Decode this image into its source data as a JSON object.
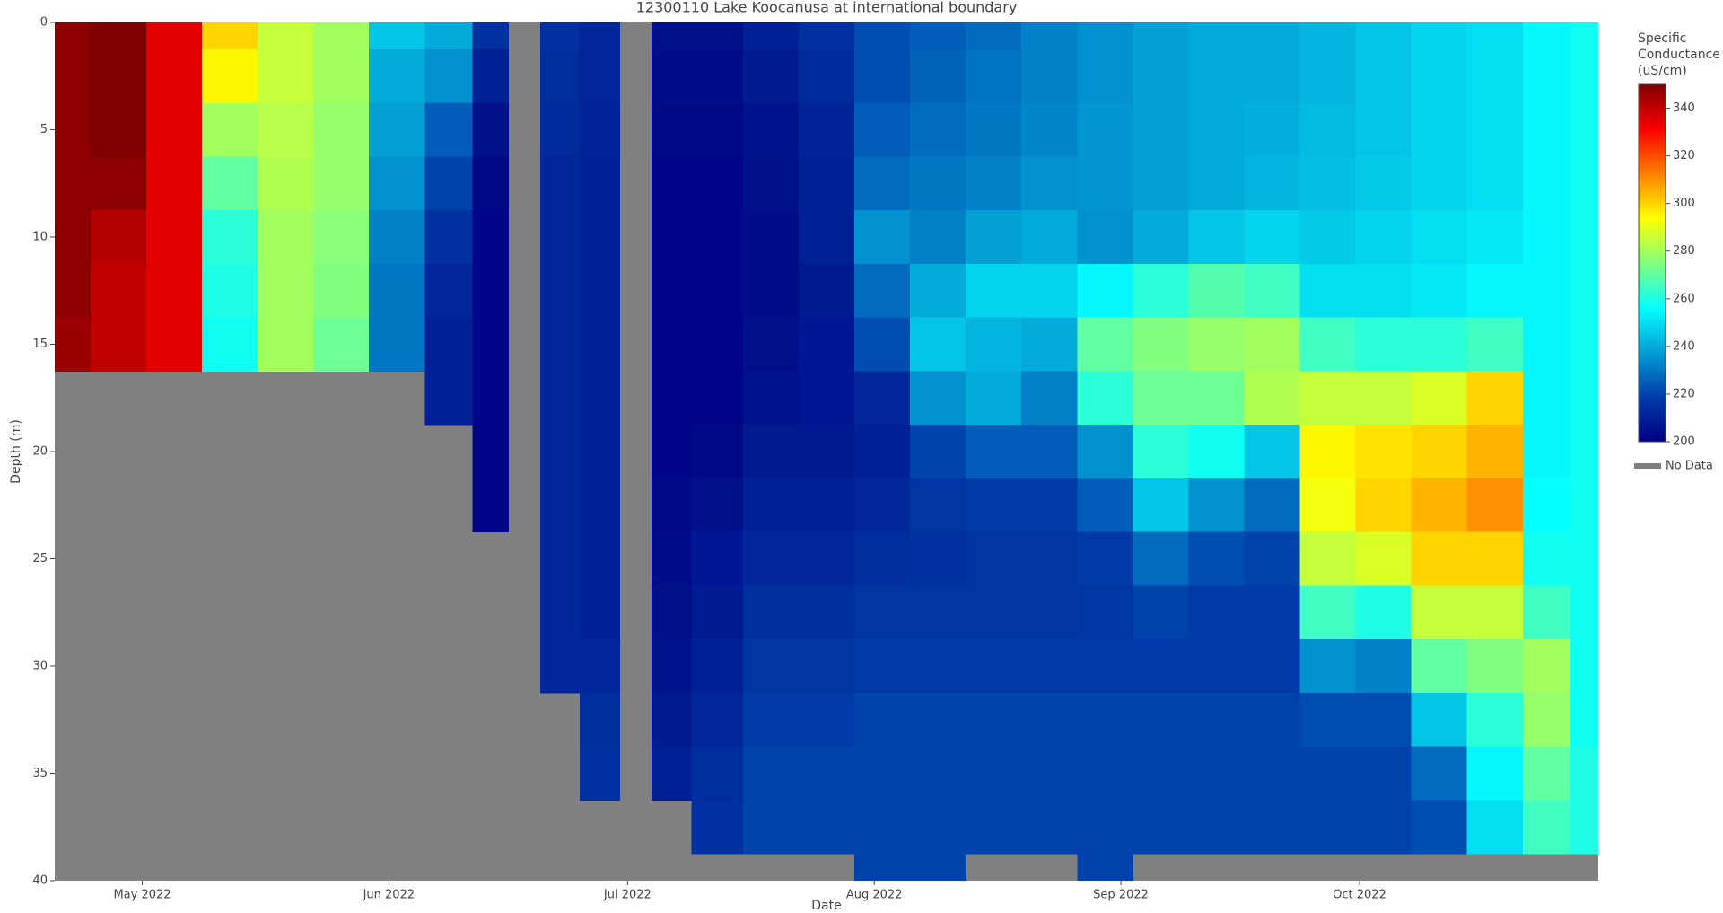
{
  "chart_data": {
    "type": "heatmap",
    "title": "12300110 Lake Koocanusa at international boundary",
    "x_label": "Date",
    "y_label": "Depth (m)",
    "colorbar_title": "Specific Conductance (uS/cm)",
    "legend": {
      "name": "No Data"
    },
    "nodata_color": "#808080",
    "colorscale": [
      [
        0,
        "#000083"
      ],
      [
        0.125,
        "#003caa"
      ],
      [
        0.375,
        "#05ffff"
      ],
      [
        0.625,
        "#ffff00"
      ],
      [
        0.875,
        "#fa0000"
      ],
      [
        1,
        "#800000"
      ]
    ],
    "xlim": [
      "2022-04-20",
      "2022-10-31"
    ],
    "xticks": [
      {
        "value": "2022-05-01",
        "label": "May 2022"
      },
      {
        "value": "2022-06-01",
        "label": "Jun 2022"
      },
      {
        "value": "2022-07-01",
        "label": "Jul 2022"
      },
      {
        "value": "2022-08-01",
        "label": "Aug 2022"
      },
      {
        "value": "2022-09-01",
        "label": "Sep 2022"
      },
      {
        "value": "2022-10-01",
        "label": "Oct 2022"
      }
    ],
    "ylim": [
      0,
      40
    ],
    "y_reversed": true,
    "yticks": [
      0,
      5,
      10,
      15,
      20,
      25,
      30,
      35,
      40
    ],
    "zlim": [
      200,
      350
    ],
    "zticks": [
      200,
      220,
      240,
      260,
      280,
      300,
      320,
      340
    ],
    "x": [
      "2022-04-21",
      "2022-04-28",
      "2022-05-05",
      "2022-05-12",
      "2022-05-19",
      "2022-05-26",
      "2022-06-02",
      "2022-06-09",
      "2022-06-14",
      "2022-06-18",
      "2022-06-22",
      "2022-06-28",
      "2022-07-02",
      "2022-07-06",
      "2022-07-12",
      "2022-07-19",
      "2022-07-26",
      "2022-08-02",
      "2022-08-09",
      "2022-08-16",
      "2022-08-23",
      "2022-08-30",
      "2022-09-06",
      "2022-09-13",
      "2022-09-20",
      "2022-09-27",
      "2022-10-04",
      "2022-10-11",
      "2022-10-18",
      "2022-10-25",
      "2022-10-30"
    ],
    "y": [
      0,
      2.5,
      5,
      7.5,
      10,
      12.5,
      15,
      17.5,
      20,
      22.5,
      25,
      27.5,
      30,
      32.5,
      35,
      37.5,
      40
    ],
    "z": [
      [
        348,
        348,
        348,
        348,
        348,
        348,
        346,
        null,
        null,
        null,
        null,
        null,
        null,
        null,
        null,
        null,
        null
      ],
      [
        350,
        350,
        350,
        348,
        342,
        340,
        340,
        null,
        null,
        null,
        null,
        null,
        null,
        null,
        null,
        null,
        null
      ],
      [
        335,
        335,
        335,
        335,
        335,
        335,
        335,
        null,
        null,
        null,
        null,
        null,
        null,
        null,
        null,
        null,
        null
      ],
      [
        300,
        295,
        280,
        270,
        262,
        260,
        258,
        null,
        null,
        null,
        null,
        null,
        null,
        null,
        null,
        null,
        null
      ],
      [
        285,
        285,
        283,
        282,
        280,
        280,
        280,
        null,
        null,
        null,
        null,
        null,
        null,
        null,
        null,
        null,
        null
      ],
      [
        280,
        280,
        278,
        278,
        276,
        275,
        272,
        null,
        null,
        null,
        null,
        null,
        null,
        null,
        null,
        null,
        null
      ],
      [
        245,
        240,
        238,
        235,
        232,
        230,
        230,
        null,
        null,
        null,
        null,
        null,
        null,
        null,
        null,
        null,
        null
      ],
      [
        240,
        235,
        225,
        220,
        215,
        212,
        210,
        210,
        null,
        null,
        null,
        null,
        null,
        null,
        null,
        null,
        null
      ],
      [
        215,
        210,
        205,
        203,
        202,
        202,
        202,
        202,
        202,
        202,
        null,
        null,
        null,
        null,
        null,
        null,
        null
      ],
      [
        null,
        null,
        null,
        null,
        null,
        null,
        null,
        null,
        null,
        null,
        null,
        null,
        null,
        null,
        null,
        null,
        null
      ],
      [
        215,
        214,
        213,
        212,
        212,
        212,
        212,
        212,
        212,
        212,
        212,
        212,
        212,
        null,
        null,
        null,
        null
      ],
      [
        212,
        212,
        211,
        210,
        210,
        210,
        210,
        210,
        210,
        210,
        210,
        210,
        212,
        214,
        215,
        null,
        null
      ],
      [
        null,
        null,
        null,
        null,
        null,
        null,
        null,
        null,
        null,
        null,
        null,
        null,
        null,
        null,
        null,
        null,
        null
      ],
      [
        205,
        204,
        203,
        202,
        202,
        202,
        202,
        202,
        202,
        203,
        204,
        205,
        206,
        208,
        210,
        null,
        null
      ],
      [
        205,
        204,
        203,
        202,
        202,
        202,
        202,
        202,
        203,
        205,
        207,
        208,
        210,
        212,
        214,
        215,
        null
      ],
      [
        210,
        208,
        206,
        205,
        204,
        204,
        205,
        206,
        208,
        210,
        212,
        214,
        216,
        218,
        220,
        220,
        null
      ],
      [
        215,
        213,
        211,
        210,
        210,
        208,
        207,
        207,
        208,
        210,
        212,
        214,
        216,
        218,
        220,
        220,
        null
      ],
      [
        222,
        222,
        225,
        228,
        235,
        228,
        222,
        212,
        210,
        212,
        214,
        216,
        218,
        220,
        220,
        220,
        220
      ],
      [
        225,
        226,
        228,
        230,
        232,
        240,
        245,
        235,
        220,
        216,
        215,
        216,
        218,
        220,
        220,
        220,
        220
      ],
      [
        228,
        229,
        230,
        232,
        238,
        248,
        242,
        240,
        225,
        218,
        216,
        216,
        218,
        220,
        220,
        220,
        null
      ],
      [
        232,
        232,
        233,
        235,
        240,
        248,
        240,
        232,
        225,
        218,
        216,
        216,
        218,
        220,
        220,
        220,
        null
      ],
      [
        235,
        235,
        236,
        236,
        235,
        255,
        270,
        262,
        235,
        225,
        218,
        217,
        218,
        220,
        220,
        220,
        220
      ],
      [
        238,
        238,
        238,
        238,
        240,
        262,
        275,
        272,
        262,
        245,
        228,
        220,
        218,
        220,
        220,
        220,
        null
      ],
      [
        240,
        240,
        240,
        240,
        245,
        268,
        278,
        272,
        258,
        235,
        222,
        218,
        218,
        220,
        220,
        220,
        null
      ],
      [
        240,
        240,
        241,
        242,
        248,
        265,
        280,
        282,
        245,
        228,
        220,
        218,
        218,
        220,
        220,
        220,
        null
      ],
      [
        242,
        242,
        243,
        244,
        246,
        250,
        265,
        285,
        295,
        292,
        285,
        265,
        235,
        222,
        220,
        220,
        null
      ],
      [
        245,
        245,
        245,
        246,
        248,
        250,
        262,
        285,
        298,
        300,
        288,
        260,
        232,
        222,
        220,
        220,
        null
      ],
      [
        248,
        248,
        248,
        248,
        250,
        252,
        262,
        288,
        300,
        305,
        300,
        285,
        270,
        245,
        228,
        222,
        null
      ],
      [
        250,
        250,
        250,
        250,
        252,
        255,
        265,
        300,
        305,
        310,
        300,
        285,
        275,
        262,
        255,
        250,
        null
      ],
      [
        255,
        255,
        255,
        255,
        255,
        255,
        255,
        255,
        255,
        256,
        258,
        265,
        280,
        278,
        270,
        265,
        null
      ],
      [
        258,
        258,
        258,
        258,
        258,
        258,
        258,
        258,
        258,
        258,
        258,
        258,
        258,
        258,
        260,
        260,
        null
      ]
    ]
  }
}
